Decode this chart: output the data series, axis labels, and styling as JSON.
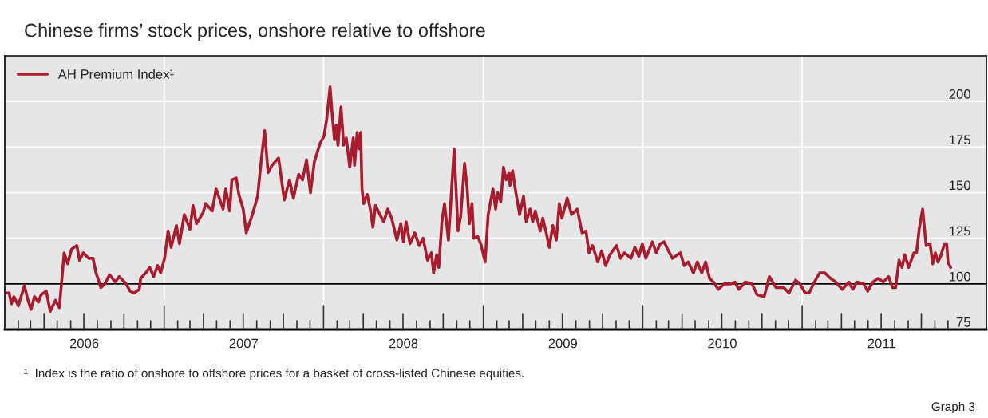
{
  "chart_data": {
    "type": "line",
    "title": "Chinese firms’ stock prices, onshore relative to offshore",
    "x": [
      "2006-01-06",
      "2006-01-11",
      "2006-01-16",
      "2006-01-22",
      "2006-02-01",
      "2006-02-15",
      "2006-02-22",
      "2006-03-02",
      "2006-03-10",
      "2006-03-19",
      "2006-03-25",
      "2006-04-06",
      "2006-04-15",
      "2006-04-27",
      "2006-05-06",
      "2006-05-17",
      "2006-05-25",
      "2006-06-03",
      "2006-06-15",
      "2006-06-21",
      "2006-06-30",
      "2006-07-12",
      "2006-07-22",
      "2006-07-29",
      "2006-08-09",
      "2006-08-18",
      "2006-08-29",
      "2006-09-11",
      "2006-09-20",
      "2006-10-06",
      "2006-10-15",
      "2006-10-24",
      "2006-11-05",
      "2006-11-08",
      "2006-11-20",
      "2006-11-29",
      "2006-12-08",
      "2006-12-17",
      "2006-12-24",
      "2007-01-02",
      "2007-01-10",
      "2007-01-17",
      "2007-01-29",
      "2007-02-05",
      "2007-02-16",
      "2007-03-01",
      "2007-03-08",
      "2007-03-16",
      "2007-03-31",
      "2007-04-06",
      "2007-04-21",
      "2007-04-30",
      "2007-05-16",
      "2007-05-22",
      "2007-05-31",
      "2007-06-05",
      "2007-06-15",
      "2007-06-21",
      "2007-07-01",
      "2007-07-08",
      "2007-07-22",
      "2007-08-03",
      "2007-08-11",
      "2007-08-19",
      "2007-08-27",
      "2007-09-05",
      "2007-09-20",
      "2007-10-03",
      "2007-10-15",
      "2007-10-24",
      "2007-11-05",
      "2007-11-14",
      "2007-11-23",
      "2007-12-02",
      "2007-12-11",
      "2007-12-24",
      "2008-01-02",
      "2008-01-08",
      "2008-01-16",
      "2008-01-20",
      "2008-01-26",
      "2008-01-30",
      "2008-02-03",
      "2008-02-10",
      "2008-02-16",
      "2008-02-22",
      "2008-03-01",
      "2008-03-09",
      "2008-03-12",
      "2008-03-18",
      "2008-03-23",
      "2008-03-26",
      "2008-03-29",
      "2008-04-02",
      "2008-04-10",
      "2008-04-17",
      "2008-04-23",
      "2008-04-29",
      "2008-05-09",
      "2008-05-18",
      "2008-05-27",
      "2008-06-05",
      "2008-06-17",
      "2008-06-26",
      "2008-07-02",
      "2008-07-08",
      "2008-07-17",
      "2008-07-28",
      "2008-08-07",
      "2008-08-16",
      "2008-08-26",
      "2008-09-04",
      "2008-09-09",
      "2008-09-16",
      "2008-09-21",
      "2008-09-28",
      "2008-10-04",
      "2008-10-13",
      "2008-10-26",
      "2008-11-04",
      "2008-11-10",
      "2008-11-19",
      "2008-11-25",
      "2008-11-30",
      "2008-12-06",
      "2008-12-10",
      "2008-12-19",
      "2008-12-26",
      "2009-01-05",
      "2009-01-12",
      "2009-01-23",
      "2009-01-29",
      "2009-02-03",
      "2009-02-10",
      "2009-02-16",
      "2009-02-22",
      "2009-03-01",
      "2009-03-03",
      "2009-03-09",
      "2009-03-15",
      "2009-03-25",
      "2009-04-03",
      "2009-04-09",
      "2009-04-18",
      "2009-04-24",
      "2009-04-30",
      "2009-05-11",
      "2009-05-17",
      "2009-05-25",
      "2009-06-01",
      "2009-06-09",
      "2009-06-17",
      "2009-06-24",
      "2009-06-30",
      "2009-07-12",
      "2009-07-22",
      "2009-07-31",
      "2009-08-04",
      "2009-08-15",
      "2009-08-24",
      "2009-08-31",
      "2009-09-08",
      "2009-09-20",
      "2009-09-29",
      "2009-10-08",
      "2009-10-18",
      "2009-11-02",
      "2009-11-11",
      "2009-11-20",
      "2009-12-05",
      "2009-12-14",
      "2009-12-23",
      "2009-12-31",
      "2010-01-08",
      "2010-01-23",
      "2010-02-01",
      "2010-02-10",
      "2010-02-19",
      "2010-03-01",
      "2010-03-10",
      "2010-03-28",
      "2010-04-06",
      "2010-04-15",
      "2010-04-27",
      "2010-05-06",
      "2010-05-16",
      "2010-05-25",
      "2010-06-03",
      "2010-06-12",
      "2010-06-23",
      "2010-07-06",
      "2010-07-22",
      "2010-07-31",
      "2010-08-09",
      "2010-08-24",
      "2010-09-08",
      "2010-09-20",
      "2010-10-06",
      "2010-10-18",
      "2010-11-02",
      "2010-11-20",
      "2010-12-02",
      "2010-12-17",
      "2010-12-27",
      "2011-01-08",
      "2011-01-17",
      "2011-01-29",
      "2011-02-10",
      "2011-02-22",
      "2011-03-07",
      "2011-03-19",
      "2011-04-03",
      "2011-04-18",
      "2011-04-27",
      "2011-05-06",
      "2011-05-22",
      "2011-05-31",
      "2011-06-12",
      "2011-06-24",
      "2011-07-06",
      "2011-07-18",
      "2011-07-27",
      "2011-08-03",
      "2011-08-11",
      "2011-08-18",
      "2011-08-24",
      "2011-09-02",
      "2011-09-14",
      "2011-09-20",
      "2011-09-26",
      "2011-10-04",
      "2011-10-12",
      "2011-10-21",
      "2011-10-27",
      "2011-11-02",
      "2011-11-08",
      "2011-11-14",
      "2011-11-23",
      "2011-11-28",
      "2011-12-01",
      "2011-12-07"
    ],
    "series": [
      {
        "name": "AH Premium Index¹",
        "color": "#a81c2e",
        "values": [
          95,
          95,
          89,
          93,
          88,
          99,
          92,
          86,
          93,
          90,
          94,
          96,
          85,
          91,
          87,
          117,
          111,
          119,
          121,
          113,
          117,
          114,
          114,
          106,
          98,
          100,
          105,
          101,
          104,
          100,
          96,
          95,
          97,
          103,
          106,
          109,
          104,
          110,
          106,
          114,
          129,
          120,
          132,
          122,
          138,
          130,
          143,
          133,
          139,
          144,
          140,
          152,
          141,
          152,
          140,
          157,
          158,
          149,
          141,
          128,
          138,
          148,
          167,
          184,
          161,
          165,
          169,
          146,
          157,
          147,
          160,
          157,
          168,
          150,
          167,
          177,
          181,
          190,
          208,
          195,
          179,
          187,
          176,
          197,
          176,
          180,
          164,
          180,
          165,
          183,
          174,
          183,
          152,
          144,
          149,
          141,
          131,
          143,
          138,
          134,
          141,
          136,
          124,
          133,
          123,
          134,
          122,
          128,
          121,
          125,
          113,
          117,
          106,
          116,
          109,
          134,
          144,
          124,
          174,
          129,
          137,
          166,
          152,
          133,
          144,
          125,
          126,
          122,
          112,
          138,
          152,
          141,
          150,
          145,
          164,
          157,
          161,
          154,
          162,
          152,
          138,
          148,
          134,
          141,
          134,
          140,
          129,
          136,
          128,
          120,
          132,
          124,
          144,
          136,
          147,
          138,
          140,
          141,
          128,
          129,
          117,
          121,
          112,
          118,
          110,
          116,
          121,
          114,
          117,
          114,
          120,
          115,
          122,
          114,
          123,
          117,
          122,
          123,
          118,
          114,
          117,
          110,
          112,
          106,
          112,
          106,
          112,
          103,
          101,
          97,
          100,
          100,
          101,
          97,
          101,
          100,
          94,
          93,
          104,
          98,
          98,
          95,
          102,
          100,
          95,
          95,
          101,
          106,
          106,
          103,
          101,
          97,
          101,
          97,
          101,
          100,
          96,
          101,
          103,
          101,
          104,
          98,
          98,
          113,
          109,
          116,
          109,
          117,
          117,
          130,
          141,
          121,
          122,
          111,
          117,
          112,
          115,
          122,
          122,
          112,
          109
        ]
      }
    ],
    "xlim": [
      "2006-01-01",
      "2012-02-27"
    ],
    "xticks": [
      {
        "value": "2006-01-01",
        "label": null
      },
      {
        "value": "2006-07-02",
        "label": "2006"
      },
      {
        "value": "2007-01-01",
        "label": null
      },
      {
        "value": "2007-07-02",
        "label": "2007"
      },
      {
        "value": "2008-01-01",
        "label": null
      },
      {
        "value": "2008-07-02",
        "label": "2008"
      },
      {
        "value": "2009-01-01",
        "label": null
      },
      {
        "value": "2009-07-02",
        "label": "2009"
      },
      {
        "value": "2010-01-01",
        "label": null
      },
      {
        "value": "2010-07-02",
        "label": "2010"
      },
      {
        "value": "2011-01-01",
        "label": null
      },
      {
        "value": "2011-07-02",
        "label": "2011"
      }
    ],
    "ylim": [
      75,
      225
    ],
    "yticks": [
      75,
      100,
      125,
      150,
      175,
      200
    ],
    "ref_lines": [
      {
        "axis": "y",
        "value": 100,
        "color": "#000000"
      }
    ],
    "grid": true,
    "legend": "top left",
    "line_style": "solid",
    "marker": "none",
    "annotations": [
      "¹  Index is the ratio of onshore to offshore prices for a basket of cross-listed Chinese equities.",
      "Graph 3"
    ]
  }
}
